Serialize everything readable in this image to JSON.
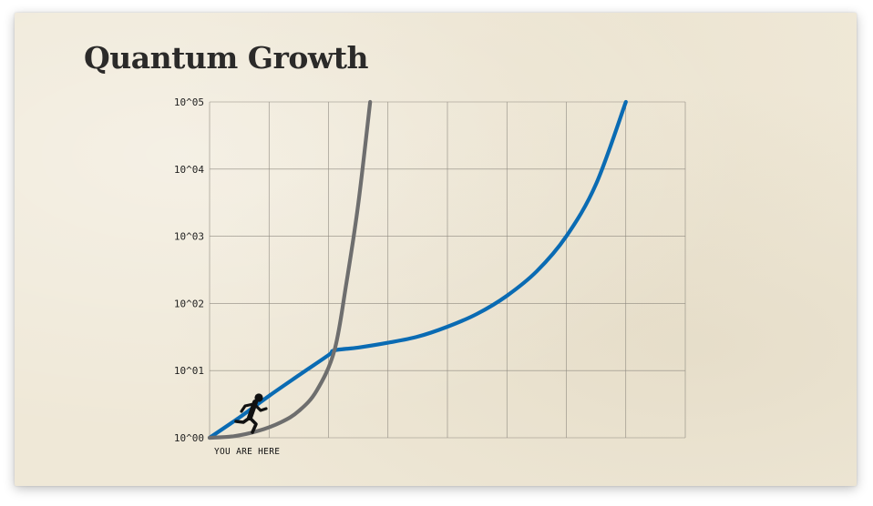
{
  "slide": {
    "title": "Quantum Growth"
  },
  "chart_data": {
    "type": "line",
    "title": "Quantum Growth",
    "xlabel": "",
    "ylabel": "",
    "y_scale": "log",
    "ylim": [
      1,
      100000
    ],
    "xlim": [
      0,
      8
    ],
    "y_ticks": [
      "10^00",
      "10^01",
      "10^02",
      "10^03",
      "10^04",
      "10^05"
    ],
    "grid": true,
    "annotation": {
      "text": "YOU ARE HERE",
      "x": 0,
      "y": 1
    },
    "series": [
      {
        "color": "#0a6bb3",
        "points": [
          [
            0.0,
            1.0
          ],
          [
            0.5,
            2.0
          ],
          [
            1.0,
            4.2
          ],
          [
            1.5,
            8.5
          ],
          [
            2.0,
            17.0
          ],
          [
            2.1,
            20.0
          ],
          [
            2.5,
            22.0
          ],
          [
            3.0,
            26.0
          ],
          [
            3.5,
            32.0
          ],
          [
            4.0,
            45.0
          ],
          [
            4.5,
            70.0
          ],
          [
            5.0,
            130.0
          ],
          [
            5.5,
            300.0
          ],
          [
            6.0,
            1000.0
          ],
          [
            6.5,
            6000.0
          ],
          [
            7.0,
            100000.0
          ]
        ]
      },
      {
        "color": "#6e6e6e",
        "points": [
          [
            0.0,
            1.0
          ],
          [
            0.4,
            1.05
          ],
          [
            0.8,
            1.25
          ],
          [
            1.2,
            1.7
          ],
          [
            1.5,
            2.5
          ],
          [
            1.8,
            5.0
          ],
          [
            2.1,
            20.0
          ],
          [
            2.3,
            200.0
          ],
          [
            2.5,
            3000.0
          ],
          [
            2.7,
            100000.0
          ]
        ]
      }
    ]
  }
}
